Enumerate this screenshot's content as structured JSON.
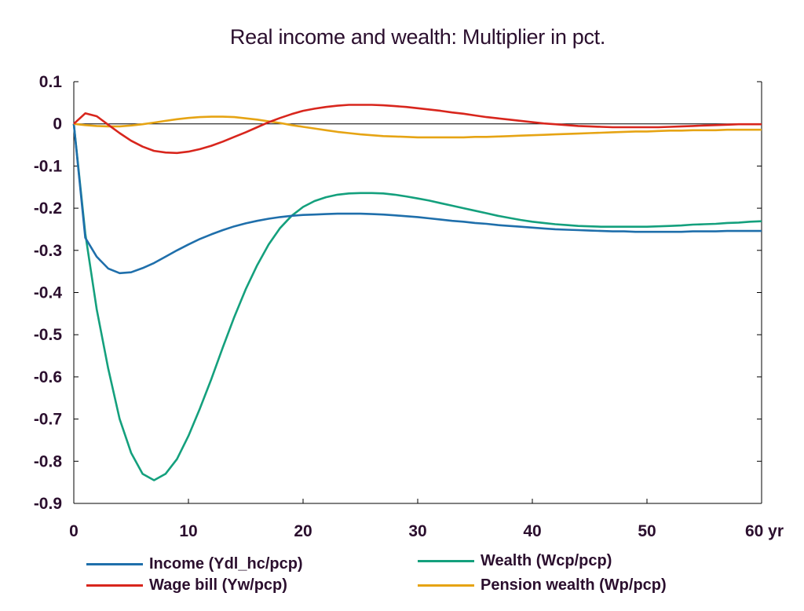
{
  "chart_data": {
    "type": "line",
    "title": "Real income and wealth: Multiplier in pct.",
    "xlabel": "",
    "ylabel": "",
    "xlim": [
      0,
      60
    ],
    "ylim": [
      -0.9,
      0.1
    ],
    "x_ticks": [
      0,
      10,
      20,
      30,
      40,
      50,
      60
    ],
    "x_tick_labels": [
      "0",
      "10",
      "20",
      "30",
      "40",
      "50",
      "60 yr"
    ],
    "y_ticks": [
      0.1,
      0,
      -0.1,
      -0.2,
      -0.3,
      -0.4,
      -0.5,
      -0.6,
      -0.7,
      -0.8,
      -0.9
    ],
    "y_tick_labels": [
      "0.1",
      "0",
      "-0.1",
      "-0.2",
      "-0.3",
      "-0.4",
      "-0.5",
      "-0.6",
      "-0.7",
      "-0.8",
      "-0.9"
    ],
    "zero_line": true,
    "grid": false,
    "legend_position": "bottom",
    "x": [
      0,
      1,
      2,
      3,
      4,
      5,
      6,
      7,
      8,
      9,
      10,
      11,
      12,
      13,
      14,
      15,
      16,
      17,
      18,
      19,
      20,
      21,
      22,
      23,
      24,
      25,
      26,
      27,
      28,
      29,
      30,
      31,
      32,
      33,
      34,
      35,
      36,
      37,
      38,
      39,
      40,
      41,
      42,
      43,
      44,
      45,
      46,
      47,
      48,
      49,
      50,
      51,
      52,
      53,
      54,
      55,
      56,
      57,
      58,
      59,
      60
    ],
    "series": [
      {
        "name": "Income (Ydl_hc/pcp)",
        "color": "#1f6fab",
        "values": [
          0,
          -0.27,
          -0.315,
          -0.343,
          -0.354,
          -0.352,
          -0.342,
          -0.33,
          -0.315,
          -0.3,
          -0.286,
          -0.273,
          -0.262,
          -0.252,
          -0.243,
          -0.236,
          -0.23,
          -0.225,
          -0.221,
          -0.218,
          -0.216,
          -0.215,
          -0.214,
          -0.213,
          -0.213,
          -0.213,
          -0.214,
          -0.215,
          -0.217,
          -0.219,
          -0.221,
          -0.224,
          -0.227,
          -0.23,
          -0.232,
          -0.235,
          -0.237,
          -0.24,
          -0.242,
          -0.244,
          -0.246,
          -0.248,
          -0.25,
          -0.251,
          -0.252,
          -0.253,
          -0.254,
          -0.255,
          -0.255,
          -0.256,
          -0.256,
          -0.256,
          -0.256,
          -0.256,
          -0.255,
          -0.255,
          -0.255,
          -0.254,
          -0.254,
          -0.254,
          -0.254
        ]
      },
      {
        "name": "Wealth (Wcp/pcp)",
        "color": "#14a07d",
        "values": [
          0,
          -0.26,
          -0.44,
          -0.58,
          -0.7,
          -0.78,
          -0.83,
          -0.845,
          -0.83,
          -0.795,
          -0.74,
          -0.675,
          -0.605,
          -0.53,
          -0.458,
          -0.392,
          -0.335,
          -0.286,
          -0.247,
          -0.218,
          -0.197,
          -0.183,
          -0.174,
          -0.168,
          -0.165,
          -0.164,
          -0.164,
          -0.165,
          -0.168,
          -0.172,
          -0.177,
          -0.182,
          -0.188,
          -0.194,
          -0.2,
          -0.206,
          -0.212,
          -0.218,
          -0.223,
          -0.228,
          -0.232,
          -0.235,
          -0.238,
          -0.24,
          -0.242,
          -0.243,
          -0.244,
          -0.244,
          -0.244,
          -0.244,
          -0.244,
          -0.243,
          -0.242,
          -0.241,
          -0.239,
          -0.238,
          -0.237,
          -0.235,
          -0.234,
          -0.232,
          -0.231
        ]
      },
      {
        "name": "Wage bill (Yw/pcp)",
        "color": "#d8261d",
        "values": [
          0,
          0.025,
          0.018,
          -0.002,
          -0.022,
          -0.04,
          -0.054,
          -0.064,
          -0.068,
          -0.069,
          -0.066,
          -0.06,
          -0.052,
          -0.042,
          -0.031,
          -0.02,
          -0.008,
          0.004,
          0.014,
          0.023,
          0.031,
          0.036,
          0.04,
          0.043,
          0.045,
          0.045,
          0.045,
          0.044,
          0.042,
          0.04,
          0.037,
          0.034,
          0.031,
          0.027,
          0.024,
          0.02,
          0.016,
          0.013,
          0.01,
          0.007,
          0.004,
          0.001,
          -0.001,
          -0.003,
          -0.005,
          -0.006,
          -0.007,
          -0.008,
          -0.008,
          -0.008,
          -0.008,
          -0.008,
          -0.007,
          -0.006,
          -0.005,
          -0.004,
          -0.003,
          -0.002,
          -0.001,
          -0.001,
          -0.001
        ]
      },
      {
        "name": "Pension wealth (Wp/pcp)",
        "color": "#e6a414",
        "values": [
          0,
          -0.003,
          -0.005,
          -0.006,
          -0.006,
          -0.004,
          -0.001,
          0.003,
          0.007,
          0.011,
          0.014,
          0.016,
          0.017,
          0.017,
          0.016,
          0.013,
          0.01,
          0.006,
          0.002,
          -0.003,
          -0.007,
          -0.011,
          -0.015,
          -0.019,
          -0.022,
          -0.025,
          -0.027,
          -0.029,
          -0.03,
          -0.031,
          -0.032,
          -0.032,
          -0.032,
          -0.032,
          -0.032,
          -0.031,
          -0.031,
          -0.03,
          -0.029,
          -0.028,
          -0.027,
          -0.026,
          -0.025,
          -0.024,
          -0.023,
          -0.022,
          -0.021,
          -0.02,
          -0.019,
          -0.018,
          -0.018,
          -0.017,
          -0.016,
          -0.016,
          -0.015,
          -0.015,
          -0.015,
          -0.014,
          -0.014,
          -0.014,
          -0.014
        ]
      }
    ]
  }
}
